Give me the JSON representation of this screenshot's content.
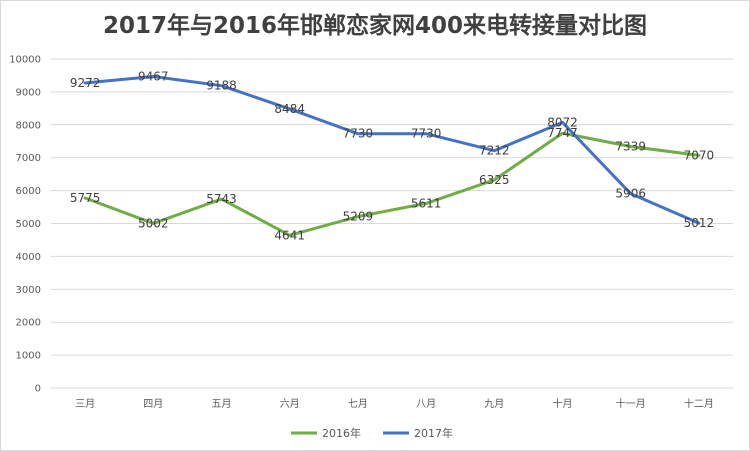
{
  "chart_data": {
    "type": "line",
    "title": "2017年与2016年邯郸恋家网400来电转接量对比图",
    "categories": [
      "三月",
      "四月",
      "五月",
      "六月",
      "七月",
      "八月",
      "九月",
      "十月",
      "十一月",
      "十二月"
    ],
    "series": [
      {
        "name": "2016年",
        "color": "#70ad47",
        "values": [
          5775,
          5002,
          5743,
          4641,
          5209,
          5611,
          6325,
          7747,
          7339,
          7070
        ]
      },
      {
        "name": "2017年",
        "color": "#4472c4",
        "values": [
          9272,
          9467,
          9188,
          8484,
          7730,
          7730,
          7212,
          8072,
          5906,
          5012
        ]
      }
    ],
    "y_ticks": [
      "0",
      "1000",
      "2000",
      "3000",
      "4000",
      "5000",
      "6000",
      "7000",
      "8000",
      "9000",
      "10000"
    ],
    "ylim": [
      0,
      10000
    ],
    "xlabel": "",
    "ylabel": "",
    "grid": true,
    "legend_position": "bottom"
  }
}
